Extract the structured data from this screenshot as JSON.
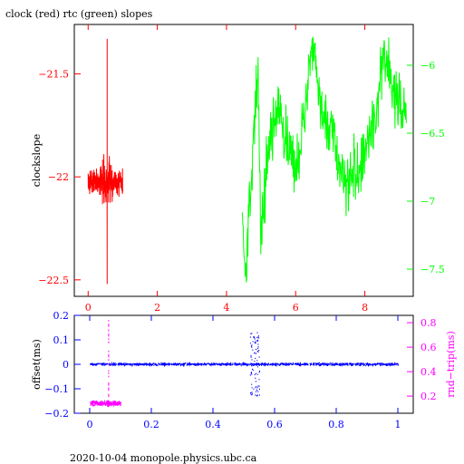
{
  "header": {
    "title": "clock (red) rtc (green) slopes"
  },
  "footer": {
    "text": "2020-10-04 monopole.physics.ubc.ca"
  },
  "chart_data": [
    {
      "type": "line",
      "title": "clock (red) rtc (green) slopes",
      "ylabel": "clockslope",
      "xlim": [
        -0.4,
        9.4
      ],
      "ylim": [
        -22.58,
        -21.26
      ],
      "y2lim": [
        -7.7,
        -5.7
      ],
      "x_ticks": [
        0,
        2,
        4,
        6,
        8
      ],
      "y_ticks": [
        -21.5,
        -22,
        -22.5
      ],
      "y2_ticks": [
        -6,
        -6.5,
        -7,
        -7.5
      ],
      "x_tick_labels": [
        "0",
        "2",
        "4",
        "6",
        "8"
      ],
      "y_tick_labels": [
        "−21.5",
        "−22",
        "−22.5"
      ],
      "y2_tick_labels": [
        "−6",
        "−6.5",
        "−7",
        "−7.5"
      ],
      "series": [
        {
          "axis": "left",
          "color": "#ff0000",
          "x_range": [
            0.0,
            1.0
          ],
          "baseline": -22.02,
          "noise": 0.06,
          "spikes": [
            {
              "x": 0.55,
              "y": -21.33
            },
            {
              "x": 0.55,
              "y": -22.52
            }
          ]
        },
        {
          "axis": "right",
          "color": "#00ff00",
          "x_range": [
            4.45,
            9.2
          ],
          "x": [
            4.45,
            4.55,
            4.7,
            4.9,
            5.0,
            5.2,
            5.5,
            6.0,
            6.5,
            6.8,
            7.0,
            7.5,
            8.0,
            8.3,
            8.5,
            9.0,
            9.2
          ],
          "y": [
            -7.0,
            -7.6,
            -6.9,
            -6.0,
            -7.3,
            -6.6,
            -6.3,
            -6.8,
            -5.9,
            -6.4,
            -6.5,
            -6.9,
            -6.6,
            -6.4,
            -6.0,
            -6.3,
            -6.3
          ]
        }
      ]
    },
    {
      "type": "scatter",
      "ylabel": "offset(ms)",
      "y2label": "rnd−trip(ms)",
      "xlim": [
        -0.05,
        1.05
      ],
      "ylim": [
        -0.2,
        0.2
      ],
      "y2lim": [
        0.06,
        0.86
      ],
      "x_ticks": [
        0,
        0.2,
        0.4,
        0.6,
        0.8,
        1
      ],
      "y_ticks": [
        0.2,
        0.1,
        0,
        -0.1,
        -0.2
      ],
      "y2_ticks": [
        0.8,
        0.6,
        0.4,
        0.2
      ],
      "x_tick_labels": [
        "0",
        "0.2",
        "0.4",
        "0.6",
        "0.8",
        "1"
      ],
      "y_tick_labels": [
        "0.2",
        "0.1",
        "0",
        "−0.1",
        "−0.2"
      ],
      "y2_tick_labels": [
        "0.8",
        "0.6",
        "0.4",
        "0.2"
      ],
      "series": [
        {
          "axis": "left",
          "color": "#0000ff",
          "x_range": [
            0.0,
            1.0
          ],
          "baseline": 0.0,
          "noise": 0.005,
          "disturbance": {
            "x_range": [
              0.52,
              0.55
            ],
            "y_range": [
              -0.13,
              0.13
            ]
          }
        },
        {
          "axis": "right",
          "color": "#ff00ff",
          "x_range": [
            0.0,
            0.1
          ],
          "baseline": 0.14,
          "noise": 0.02,
          "spike": {
            "x": 0.06,
            "y_range": [
              0.14,
              0.82
            ]
          }
        }
      ]
    }
  ]
}
